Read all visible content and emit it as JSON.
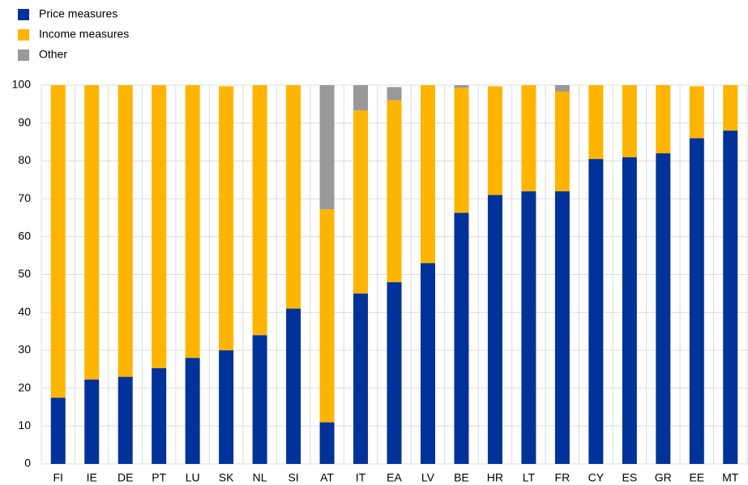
{
  "chart_data": {
    "type": "stacked-bar",
    "categories": [
      "FI",
      "IE",
      "DE",
      "PT",
      "LU",
      "SK",
      "NL",
      "SI",
      "AT",
      "IT",
      "EA",
      "LV",
      "BE",
      "HR",
      "LT",
      "FR",
      "CY",
      "ES",
      "GR",
      "EE",
      "MT"
    ],
    "series": [
      {
        "name": "Price measures",
        "color": "#003299",
        "values": [
          17.5,
          22.3,
          23,
          25.3,
          28,
          30,
          34,
          41,
          11,
          45,
          48,
          53,
          66.3,
          71,
          72,
          72,
          80.5,
          81,
          82,
          86,
          88
        ]
      },
      {
        "name": "Income measures",
        "color": "#ffb400",
        "values": [
          82.5,
          77.7,
          77,
          74.7,
          72,
          69.7,
          66,
          59,
          56.2,
          48.3,
          48,
          47,
          33,
          28.7,
          28,
          26.3,
          19.5,
          19,
          18,
          13.7,
          12
        ]
      },
      {
        "name": "Other",
        "color": "#999999",
        "values": [
          0,
          0,
          0,
          0,
          0,
          0,
          0,
          0,
          32.8,
          6.7,
          3.5,
          0,
          0.7,
          0,
          0,
          1.7,
          0,
          0,
          0,
          0,
          0
        ]
      }
    ],
    "ylim": [
      0,
      100
    ],
    "yticks": [
      0,
      10,
      20,
      30,
      40,
      50,
      60,
      70,
      80,
      90,
      100
    ],
    "grid": true,
    "legend": "top-left"
  }
}
